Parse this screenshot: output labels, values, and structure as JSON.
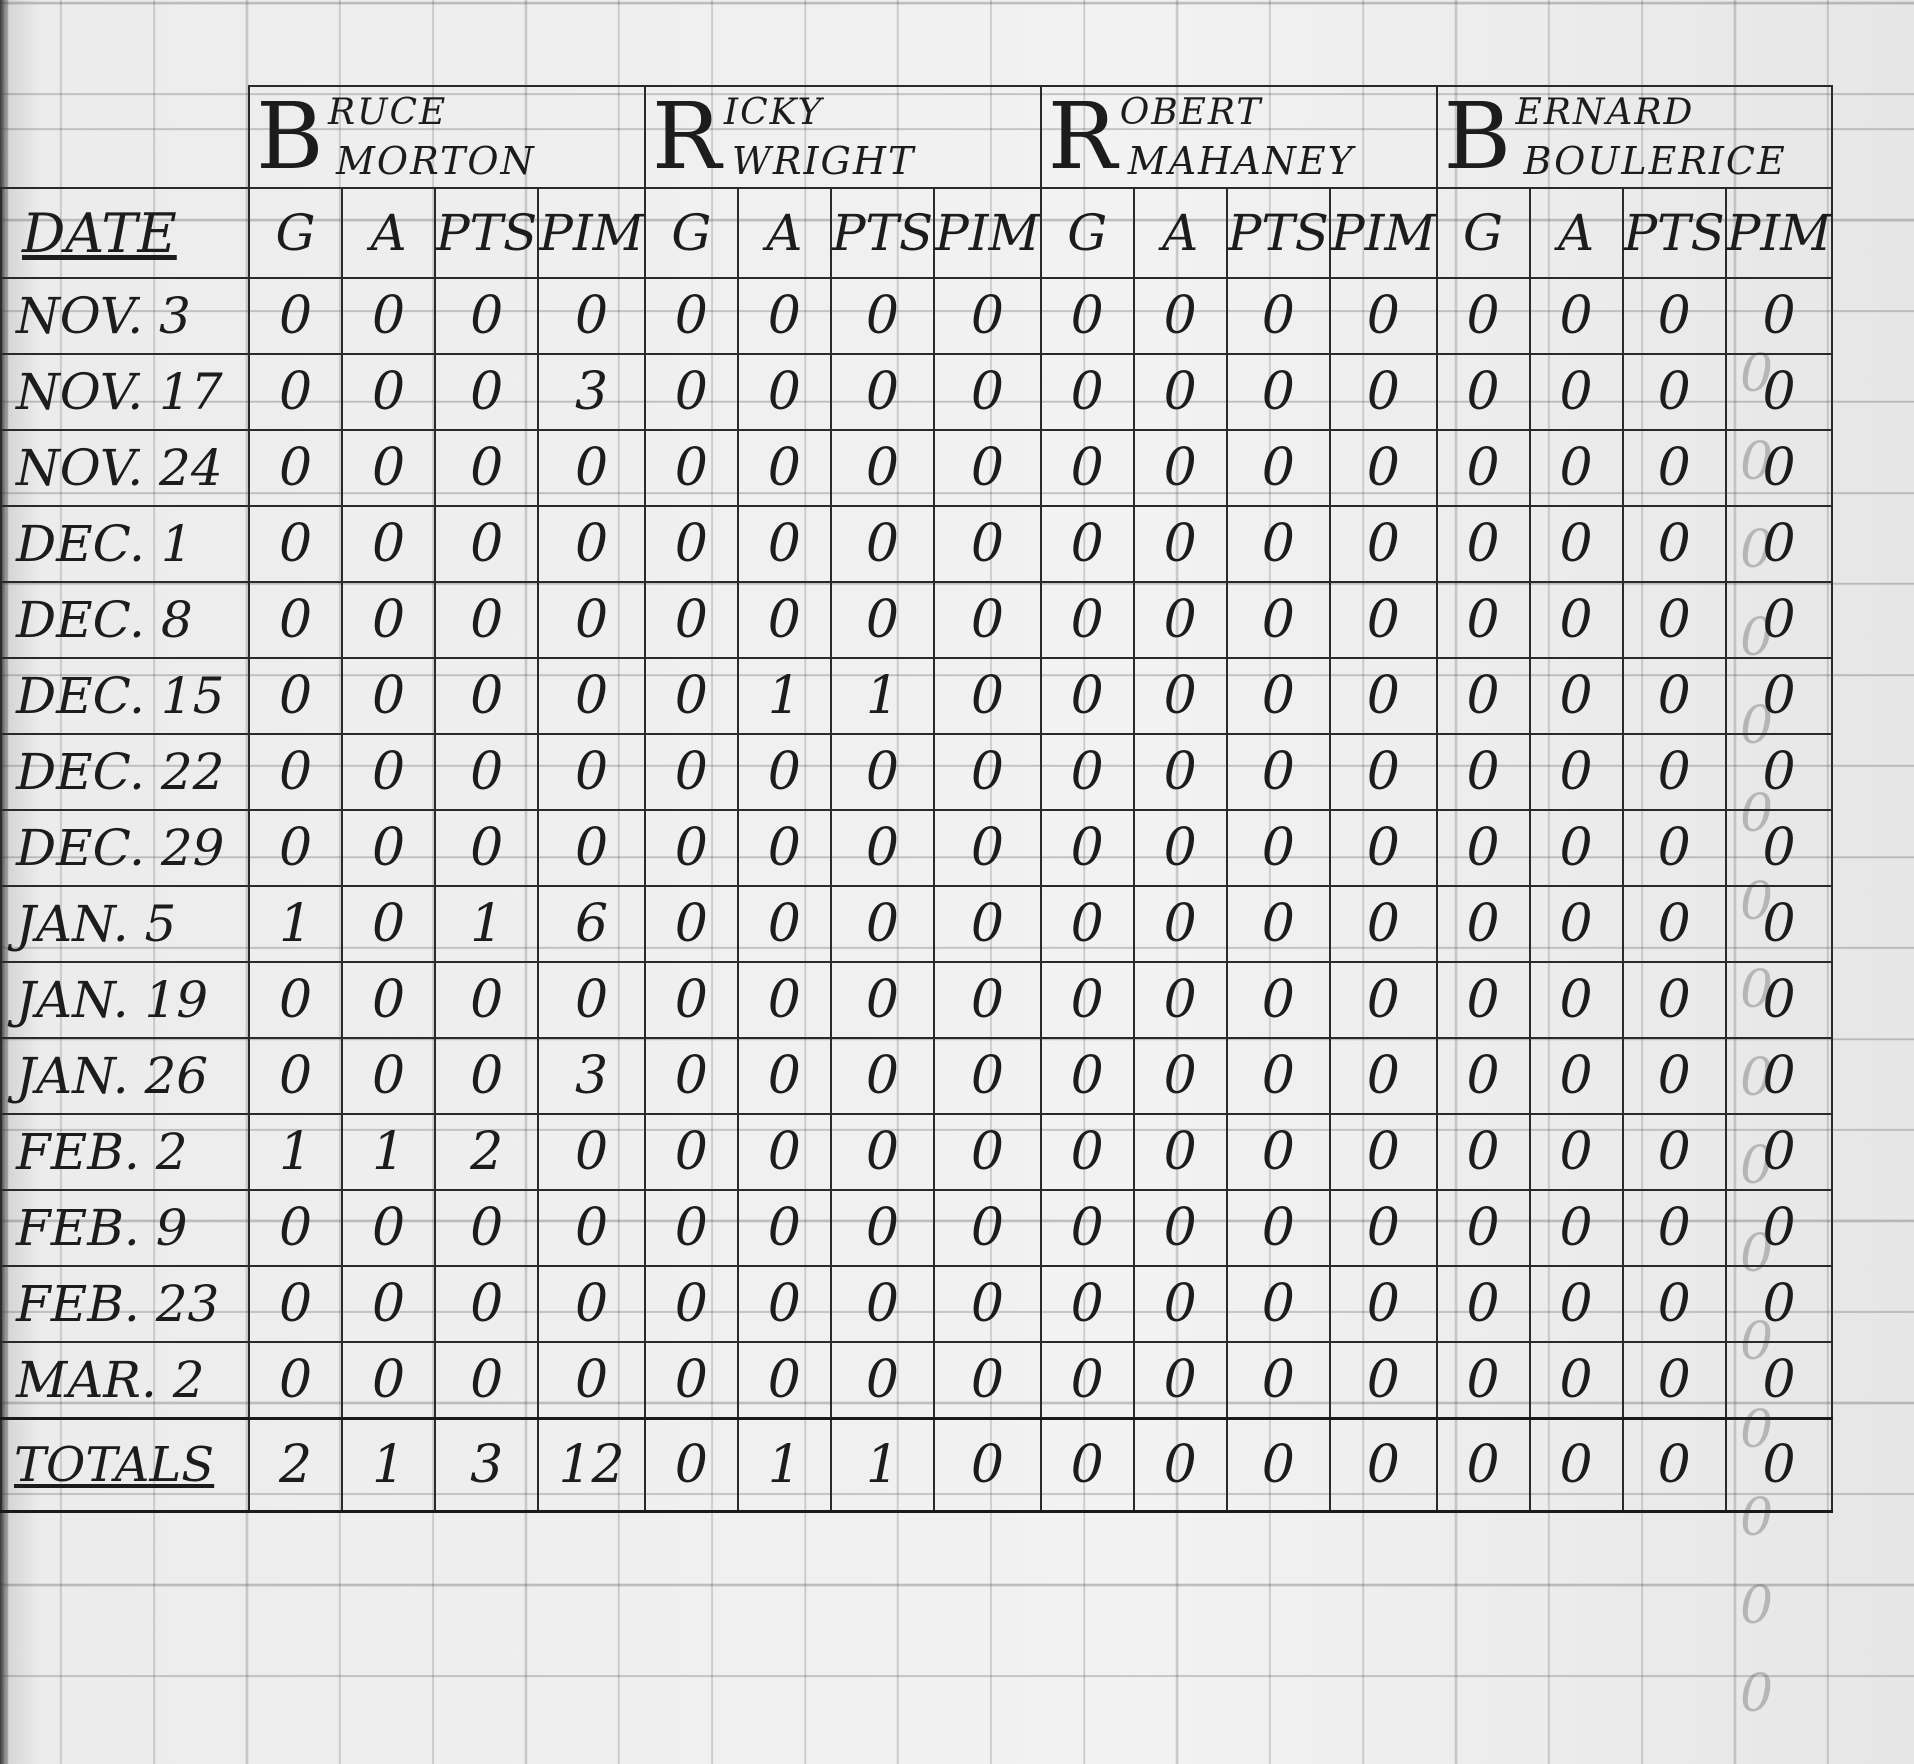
{
  "players": [
    {
      "initial": "B",
      "first": "RUCE",
      "last": "MORTON"
    },
    {
      "initial": "R",
      "first": "ICKY",
      "last": "WRIGHT"
    },
    {
      "initial": "R",
      "first": "OBERT",
      "last": "MAHANEY"
    },
    {
      "initial": "B",
      "first": "ERNARD",
      "last": "BOULERICE"
    }
  ],
  "date_header": "DATE",
  "stat_headers": [
    "G",
    "A",
    "PTS",
    "PIM"
  ],
  "rows": [
    {
      "date": "NOV. 3",
      "values": [
        "0",
        "0",
        "0",
        "0",
        "0",
        "0",
        "0",
        "0",
        "0",
        "0",
        "0",
        "0",
        "0",
        "0",
        "0",
        "0"
      ]
    },
    {
      "date": "NOV. 17",
      "values": [
        "0",
        "0",
        "0",
        "3",
        "0",
        "0",
        "0",
        "0",
        "0",
        "0",
        "0",
        "0",
        "0",
        "0",
        "0",
        "0"
      ]
    },
    {
      "date": "NOV. 24",
      "values": [
        "0",
        "0",
        "0",
        "0",
        "0",
        "0",
        "0",
        "0",
        "0",
        "0",
        "0",
        "0",
        "0",
        "0",
        "0",
        "0"
      ]
    },
    {
      "date": "DEC. 1",
      "values": [
        "0",
        "0",
        "0",
        "0",
        "0",
        "0",
        "0",
        "0",
        "0",
        "0",
        "0",
        "0",
        "0",
        "0",
        "0",
        "0"
      ]
    },
    {
      "date": "DEC. 8",
      "values": [
        "0",
        "0",
        "0",
        "0",
        "0",
        "0",
        "0",
        "0",
        "0",
        "0",
        "0",
        "0",
        "0",
        "0",
        "0",
        "0"
      ]
    },
    {
      "date": "DEC. 15",
      "values": [
        "0",
        "0",
        "0",
        "0",
        "0",
        "1",
        "1",
        "0",
        "0",
        "0",
        "0",
        "0",
        "0",
        "0",
        "0",
        "0"
      ]
    },
    {
      "date": "DEC. 22",
      "values": [
        "0",
        "0",
        "0",
        "0",
        "0",
        "0",
        "0",
        "0",
        "0",
        "0",
        "0",
        "0",
        "0",
        "0",
        "0",
        "0"
      ]
    },
    {
      "date": "DEC. 29",
      "values": [
        "0",
        "0",
        "0",
        "0",
        "0",
        "0",
        "0",
        "0",
        "0",
        "0",
        "0",
        "0",
        "0",
        "0",
        "0",
        "0"
      ]
    },
    {
      "date": "JAN. 5",
      "values": [
        "1",
        "0",
        "1",
        "6",
        "0",
        "0",
        "0",
        "0",
        "0",
        "0",
        "0",
        "0",
        "0",
        "0",
        "0",
        "0"
      ]
    },
    {
      "date": "JAN. 19",
      "values": [
        "0",
        "0",
        "0",
        "0",
        "0",
        "0",
        "0",
        "0",
        "0",
        "0",
        "0",
        "0",
        "0",
        "0",
        "0",
        "0"
      ]
    },
    {
      "date": "JAN. 26",
      "values": [
        "0",
        "0",
        "0",
        "3",
        "0",
        "0",
        "0",
        "0",
        "0",
        "0",
        "0",
        "0",
        "0",
        "0",
        "0",
        "0"
      ]
    },
    {
      "date": "FEB. 2",
      "values": [
        "1",
        "1",
        "2",
        "0",
        "0",
        "0",
        "0",
        "0",
        "0",
        "0",
        "0",
        "0",
        "0",
        "0",
        "0",
        "0"
      ]
    },
    {
      "date": "FEB. 9",
      "values": [
        "0",
        "0",
        "0",
        "0",
        "0",
        "0",
        "0",
        "0",
        "0",
        "0",
        "0",
        "0",
        "0",
        "0",
        "0",
        "0"
      ]
    },
    {
      "date": "FEB. 23",
      "values": [
        "0",
        "0",
        "0",
        "0",
        "0",
        "0",
        "0",
        "0",
        "0",
        "0",
        "0",
        "0",
        "0",
        "0",
        "0",
        "0"
      ]
    },
    {
      "date": "MAR. 2",
      "values": [
        "0",
        "0",
        "0",
        "0",
        "0",
        "0",
        "0",
        "0",
        "0",
        "0",
        "0",
        "0",
        "0",
        "0",
        "0",
        "0"
      ]
    }
  ],
  "totals": {
    "label": "TOTALS",
    "values": [
      "2",
      "1",
      "3",
      "12",
      "0",
      "1",
      "1",
      "0",
      "0",
      "0",
      "0",
      "0",
      "0",
      "0",
      "0",
      "0"
    ]
  }
}
